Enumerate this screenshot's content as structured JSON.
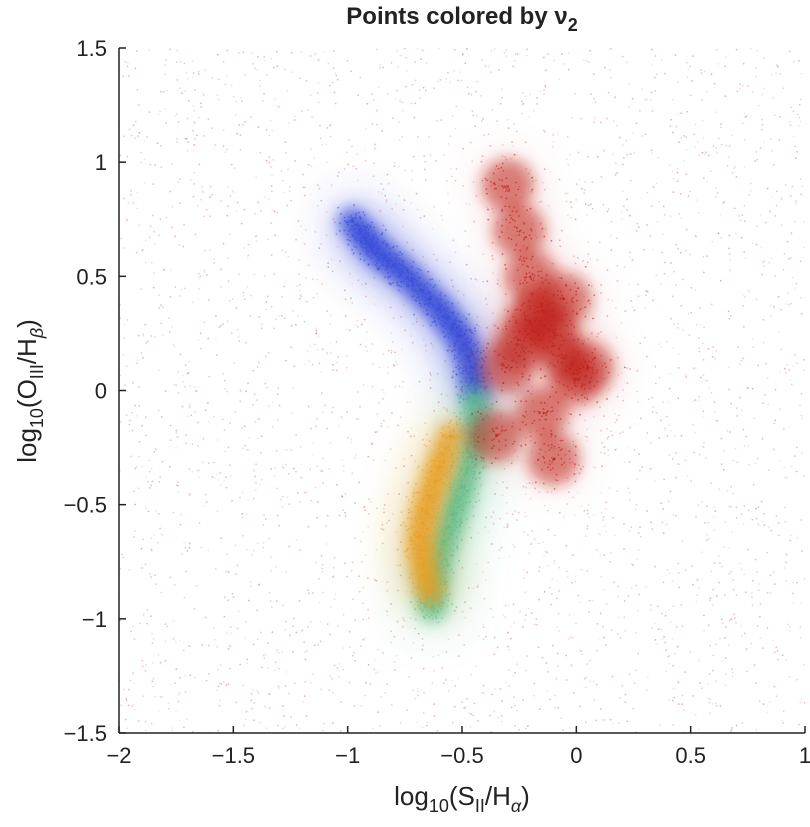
{
  "chart_data": {
    "type": "scatter",
    "title": "Points colored by ν",
    "title_subscript": "2",
    "xlabel": {
      "prefix": "log",
      "base": "10",
      "open": "(S",
      "num_sub": "II",
      "mid": "/H",
      "den_sub": "α",
      "close": ")"
    },
    "ylabel": {
      "prefix": "log",
      "base": "10",
      "open": "(O",
      "num_sub": "III",
      "mid": "/H",
      "den_sub": "β",
      "close": ")"
    },
    "xlim": [
      -2,
      1
    ],
    "ylim": [
      -1.5,
      1.5
    ],
    "xticks": [
      -2,
      -1.5,
      -1,
      -0.5,
      0,
      0.5,
      1
    ],
    "yticks": [
      -1.5,
      -1,
      -0.5,
      0,
      0.5,
      1,
      1.5
    ],
    "xtick_labels": [
      "−2",
      "−1.5",
      "−1",
      "−0.5",
      "0",
      "0.5",
      "1"
    ],
    "ytick_labels": [
      "−1.5",
      "−1",
      "−0.5",
      "0",
      "0.5",
      "1",
      "1.5"
    ],
    "grid": false,
    "legend": "none",
    "colorscale": [
      "#2c3fd6",
      "#2f8fe0",
      "#30c4c0",
      "#9ad34a",
      "#e8d22c",
      "#f08a1c",
      "#d4301c",
      "#b01818"
    ],
    "background_color": "#c23a3a",
    "series": [
      {
        "x": [
          -0.98,
          -0.95,
          -0.92,
          -0.9,
          -0.87,
          -0.84,
          -0.8,
          -0.76,
          -0.72,
          -0.68,
          -0.64,
          -0.6,
          -0.57,
          -0.54,
          -0.51,
          -0.49,
          -0.47,
          -0.46,
          -0.45,
          -0.44
        ],
        "y": [
          0.74,
          0.7,
          0.67,
          0.64,
          0.61,
          0.58,
          0.55,
          0.52,
          0.48,
          0.44,
          0.4,
          0.36,
          0.32,
          0.28,
          0.24,
          0.2,
          0.15,
          0.1,
          0.05,
          0.0
        ],
        "color": "#3b4fd8"
      },
      {
        "x": [
          -0.44,
          -0.44,
          -0.45,
          -0.46,
          -0.48,
          -0.5,
          -0.52,
          -0.54,
          -0.56,
          -0.58,
          -0.6,
          -0.61,
          -0.62,
          -0.63,
          -0.63
        ],
        "y": [
          -0.05,
          -0.12,
          -0.2,
          -0.28,
          -0.35,
          -0.42,
          -0.48,
          -0.54,
          -0.6,
          -0.66,
          -0.72,
          -0.78,
          -0.84,
          -0.9,
          -0.95
        ],
        "color": "#4cc29a"
      },
      {
        "x": [
          -0.55,
          -0.58,
          -0.6,
          -0.62,
          -0.64,
          -0.66,
          -0.67,
          -0.68,
          -0.68,
          -0.67,
          -0.66,
          -0.64
        ],
        "y": [
          -0.2,
          -0.28,
          -0.34,
          -0.4,
          -0.46,
          -0.52,
          -0.58,
          -0.64,
          -0.7,
          -0.76,
          -0.82,
          -0.88
        ],
        "color": "#e8a024"
      },
      {
        "x": [
          -0.3,
          -0.25,
          -0.2,
          -0.15,
          -0.1,
          -0.05,
          0.0,
          0.05,
          -0.2,
          -0.25,
          -0.3,
          -0.15,
          -0.1,
          -0.35,
          -0.05
        ],
        "y": [
          0.1,
          0.2,
          0.3,
          0.35,
          0.25,
          0.15,
          0.05,
          0.1,
          0.5,
          0.7,
          0.9,
          -0.1,
          -0.3,
          -0.2,
          0.4
        ],
        "color": "#c0201a"
      }
    ]
  }
}
